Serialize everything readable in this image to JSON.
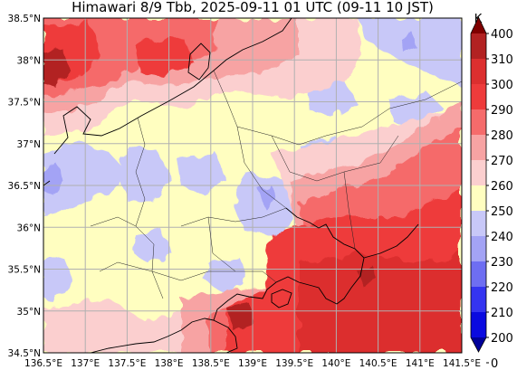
{
  "title": "Himawari 8/9 Tbb, 2025-09-11 01 UTC (09-11 10 JST)",
  "map": {
    "lon_range": [
      136.5,
      141.5
    ],
    "lat_range": [
      34.5,
      38.5
    ],
    "grid": true,
    "lon_ticks": [
      "136.5°E",
      "137°E",
      "137.5°E",
      "138°E",
      "138.5°E",
      "139°E",
      "139.5°E",
      "140°E",
      "140.5°E",
      "141°E",
      "141.5°E"
    ],
    "lat_ticks": [
      "38.5°N",
      "38°N",
      "37.5°N",
      "37°N",
      "36.5°N",
      "36°N",
      "35.5°N",
      "35°N",
      "34.5°N"
    ]
  },
  "colorbar": {
    "unit": "K",
    "levels": [
      "400",
      "310",
      "300",
      "290",
      "280",
      "270",
      "260",
      "250",
      "240",
      "230",
      "220",
      "210",
      "200",
      "0"
    ],
    "colors": [
      "#7f0000",
      "#b22222",
      "#dc2f2f",
      "#ee3b3b",
      "#f56b6b",
      "#f7a3a3",
      "#fbcfcf",
      "#fffec0",
      "#c8c8f8",
      "#a3a3f5",
      "#6e6ef2",
      "#3434f0",
      "#0a0ae0",
      "#00009a"
    ],
    "extend": "both"
  }
}
